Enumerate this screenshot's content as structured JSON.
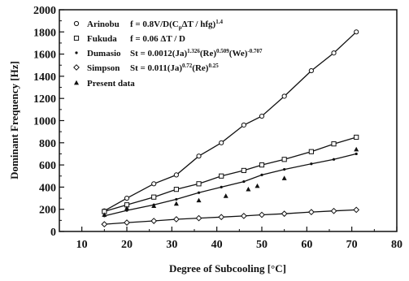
{
  "chart_data": {
    "type": "line",
    "title": "",
    "xlabel": "Degree of Subcooling [°C]",
    "ylabel": "Dominant Frequency [Hz]",
    "xlim": [
      5,
      80
    ],
    "ylim": [
      0,
      2000
    ],
    "xticks": [
      10,
      20,
      30,
      40,
      50,
      60,
      70,
      80
    ],
    "yticks": [
      0,
      200,
      400,
      600,
      800,
      1000,
      1200,
      1400,
      1600,
      1800,
      2000
    ],
    "grid": false,
    "legend_position": "top-left",
    "series": [
      {
        "name": "Arinobu",
        "formula": {
          "pre": "f = 0.8V/D(C",
          "sub1": "p",
          "mid": "ΔT / hfg)",
          "sup1": "1.4"
        },
        "marker": "open-circle",
        "x": [
          15,
          20,
          26,
          31,
          36,
          41,
          46,
          50,
          55,
          61,
          66,
          71
        ],
        "y": [
          185,
          300,
          430,
          510,
          680,
          800,
          960,
          1040,
          1220,
          1450,
          1610,
          1800
        ]
      },
      {
        "name": "Fukuda",
        "formula": {
          "pre": "f = 0.06 ΔT / D"
        },
        "marker": "open-square",
        "x": [
          15,
          20,
          26,
          31,
          36,
          41,
          46,
          50,
          55,
          61,
          66,
          71
        ],
        "y": [
          180,
          240,
          310,
          380,
          430,
          500,
          550,
          600,
          650,
          720,
          790,
          850
        ]
      },
      {
        "name": "Dumasio",
        "formula": {
          "pre": "St = 0.0012(Ja)",
          "sup1": "1.326",
          "mid": "(Re)",
          "sup2": "0.509",
          "post": "(We)",
          "sup3": "-0.707"
        },
        "marker": "dot",
        "x": [
          15,
          20,
          26,
          31,
          36,
          41,
          46,
          50,
          55,
          61,
          66,
          71
        ],
        "y": [
          140,
          190,
          240,
          290,
          350,
          400,
          450,
          510,
          560,
          610,
          650,
          700
        ]
      },
      {
        "name": "Simpson",
        "formula": {
          "pre": "St = 0.011(Ja)",
          "sup1": "0.72",
          "mid": "(Re)",
          "sup2": "0.25"
        },
        "marker": "open-diamond",
        "x": [
          15,
          20,
          26,
          31,
          36,
          41,
          46,
          50,
          55,
          61,
          66,
          71
        ],
        "y": [
          65,
          80,
          95,
          110,
          120,
          130,
          140,
          150,
          160,
          175,
          185,
          195
        ]
      },
      {
        "name": "Present data",
        "formula": {
          "pre": ""
        },
        "marker": "filled-triangle",
        "x": [
          15,
          20,
          26,
          31,
          36,
          42,
          47,
          49,
          55,
          71
        ],
        "y": [
          150,
          210,
          230,
          250,
          280,
          320,
          380,
          410,
          480,
          740
        ]
      }
    ]
  }
}
